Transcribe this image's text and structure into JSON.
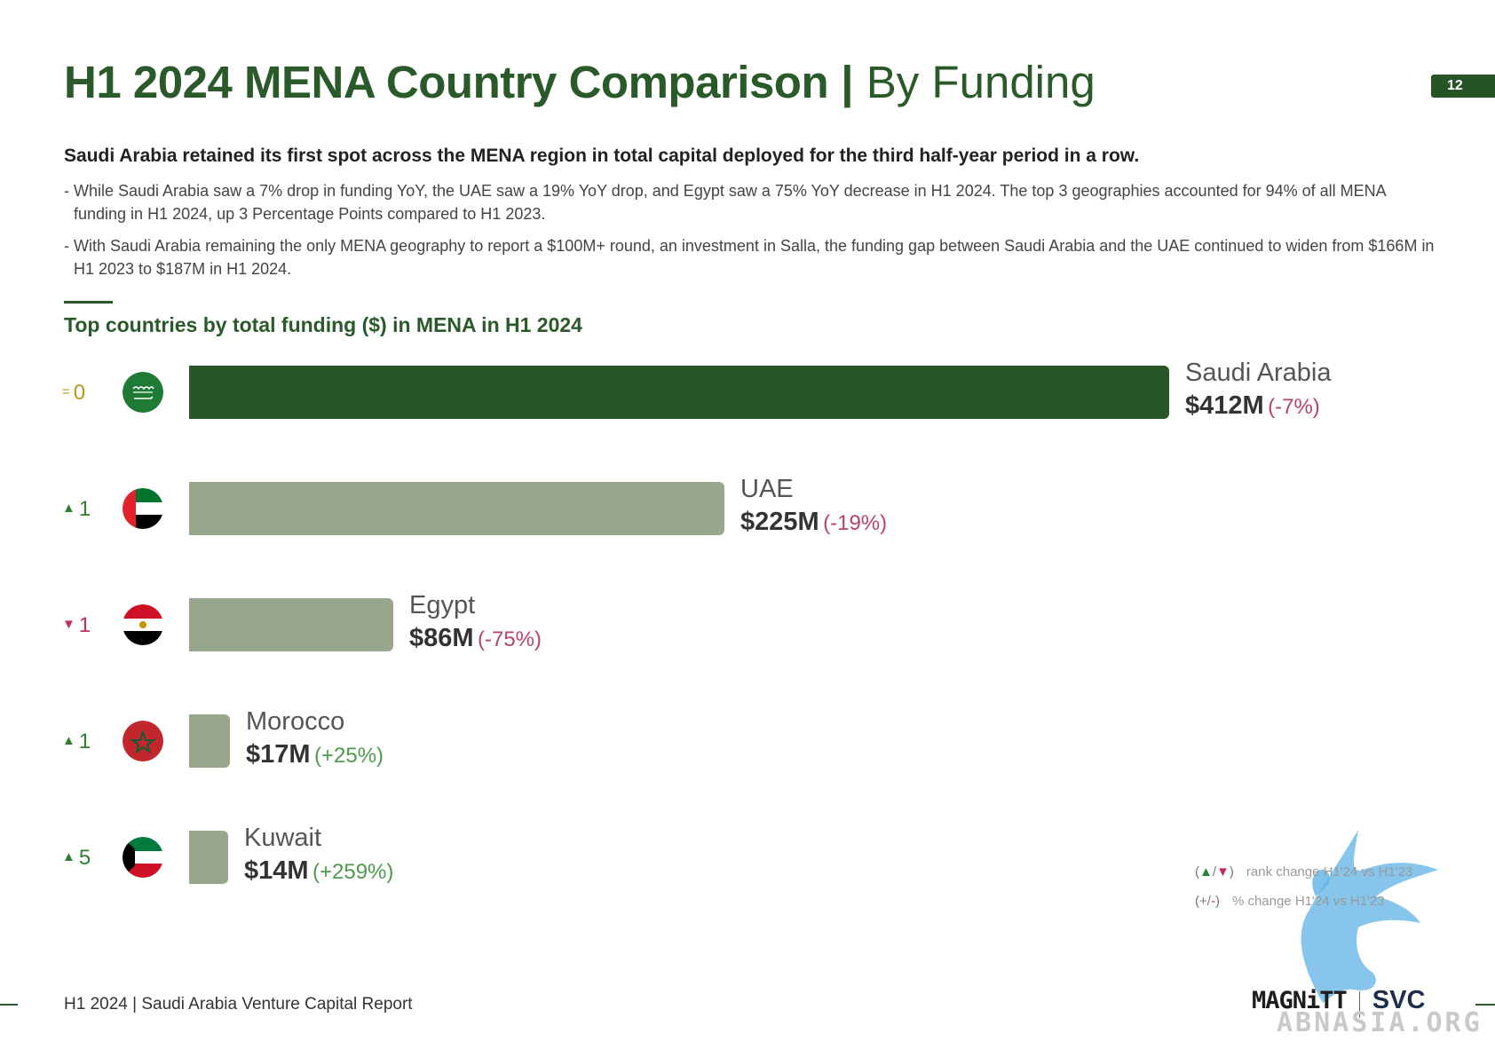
{
  "header": {
    "title_strong": "H1 2024 MENA Country Comparison",
    "title_separator": "|",
    "title_light": "By Funding",
    "page_number": "12"
  },
  "summary": {
    "headline": "Saudi Arabia retained its first spot across the MENA region in total capital deployed for the third half-year period in a row.",
    "bullets": [
      "- While Saudi Arabia saw a 7% drop in funding YoY, the UAE saw a 19% YoY drop, and Egypt saw a 75% YoY decrease in H1 2024. The top 3 geographies accounted for 94% of all MENA funding in H1 2024, up 3 Percentage Points compared to H1 2023.",
      "- With Saudi Arabia remaining the only MENA geography to report a $100M+ round, an investment in Salla, the funding gap between Saudi Arabia and the UAE continued to widen from $166M in H1 2023 to $187M in H1 2024."
    ]
  },
  "chart_data": {
    "type": "bar",
    "orientation": "horizontal",
    "title": "Top countries by total funding ($) in MENA in H1 2024",
    "unit": "$M",
    "categories": [
      "Saudi Arabia",
      "UAE",
      "Egypt",
      "Morocco",
      "Kuwait"
    ],
    "values": [
      412,
      225,
      86,
      17,
      14
    ],
    "value_labels": [
      "$412M",
      "$225M",
      "$86M",
      "$17M",
      "$14M"
    ],
    "yoy_change": [
      "(-7%)",
      "(-19%)",
      "(-75%)",
      "(+25%)",
      "(+259%)"
    ],
    "rank_change": [
      {
        "direction": "same",
        "symbol": "=",
        "value": "0"
      },
      {
        "direction": "up",
        "symbol": "▲",
        "value": "1"
      },
      {
        "direction": "down",
        "symbol": "▼",
        "value": "1"
      },
      {
        "direction": "up",
        "symbol": "▲",
        "value": "1"
      },
      {
        "direction": "up",
        "symbol": "▲",
        "value": "5"
      }
    ],
    "flags": [
      "saudi-arabia-flag-icon",
      "uae-flag-icon",
      "egypt-flag-icon",
      "morocco-flag-icon",
      "kuwait-flag-icon"
    ],
    "max_value": 412,
    "legend": [
      {
        "open": "(",
        "up": "▲",
        "slash": "/",
        "down": "▼",
        "close": ")",
        "label": "rank change H1'24 vs H1'23"
      },
      {
        "open": "(",
        "up": "+",
        "slash": "/",
        "down": "-",
        "close": ")",
        "label": "% change H1'24 vs H1'23"
      }
    ],
    "colors": {
      "leader": "#285628",
      "others": "#98a68c",
      "negative": "#b8426e",
      "positive": "#4e9a4e"
    }
  },
  "footer": {
    "report_name": "H1 2024 | Saudi Arabia Venture Capital Report",
    "logo_magnitt": "MAGNiTT",
    "logo_svc": "SVC"
  },
  "watermark": {
    "text": "ABNASIA.ORG"
  }
}
